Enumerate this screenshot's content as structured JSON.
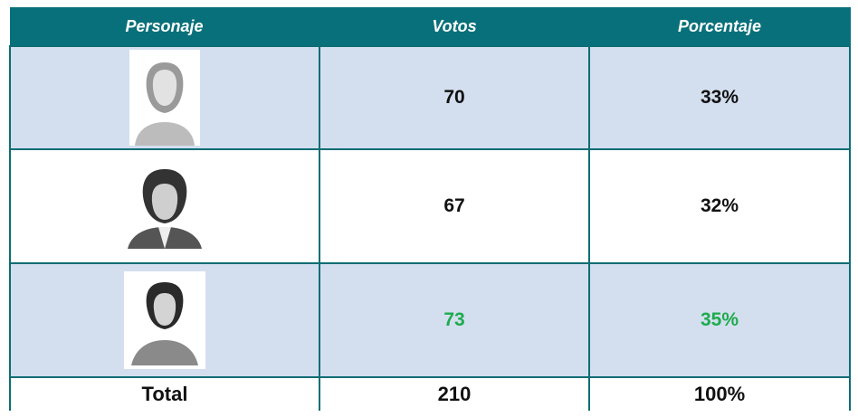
{
  "table": {
    "header": [
      "Personaje",
      "Votos",
      "Porcentaje"
    ],
    "rows": [
      {
        "votes": "70",
        "percent": "33%"
      },
      {
        "votes": "67",
        "percent": "32%"
      },
      {
        "votes": "73",
        "percent": "35%"
      }
    ],
    "total": [
      "Total",
      "210",
      "100%"
    ]
  }
}
